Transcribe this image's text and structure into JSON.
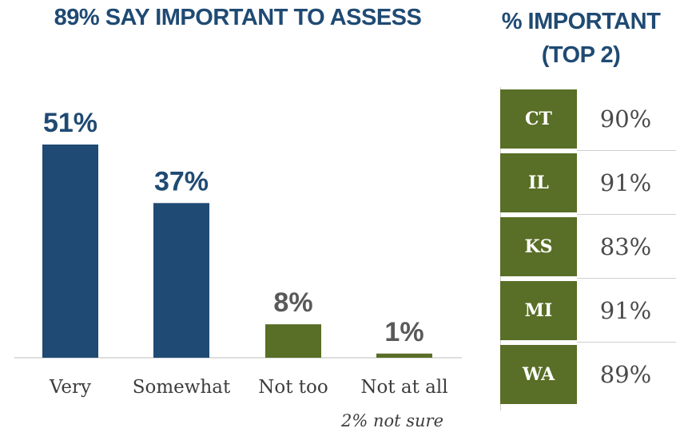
{
  "left_title": "89% SAY IMPORTANT TO ASSESS",
  "right_title_line1": "% IMPORTANT",
  "right_title_line2": "(TOP 2)",
  "chart_data": {
    "type": "bar",
    "title": "89% SAY IMPORTANT TO ASSESS",
    "categories": [
      "Very",
      "Somewhat",
      "Not too",
      "Not at all"
    ],
    "values": [
      51,
      37,
      8,
      1
    ],
    "value_labels": [
      "51%",
      "37%",
      "8%",
      "1%"
    ],
    "bar_colors": [
      "#1f4a73",
      "#1f4a73",
      "#596e26",
      "#596e26"
    ],
    "label_colors": [
      "#1f4a73",
      "#1f4a73",
      "#595959",
      "#595959"
    ],
    "note": "2% not sure",
    "ylim": [
      0,
      51
    ],
    "grid": false
  },
  "state_table": {
    "rows": [
      {
        "state": "CT",
        "value": "90%"
      },
      {
        "state": "IL",
        "value": "91%"
      },
      {
        "state": "KS",
        "value": "83%"
      },
      {
        "state": "MI",
        "value": "91%"
      },
      {
        "state": "WA",
        "value": "89%"
      }
    ]
  },
  "colors": {
    "navy": "#1f4a73",
    "olive": "#596e26",
    "gray_text": "#595959"
  }
}
